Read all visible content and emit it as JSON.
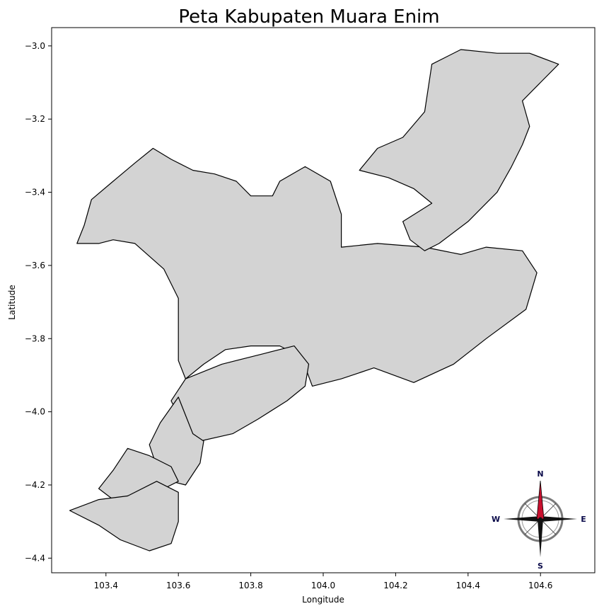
{
  "title": "Peta Kabupaten Muara Enim",
  "xlabel": "Longitude",
  "ylabel": "Latitude",
  "x_ticks": [
    "103.4",
    "103.6",
    "103.8",
    "104.0",
    "104.2",
    "104.4",
    "104.6"
  ],
  "y_ticks": [
    "−3.0",
    "−3.2",
    "−3.4",
    "−3.6",
    "−3.8",
    "−4.0",
    "−4.2",
    "−4.4"
  ],
  "compass": {
    "n": "N",
    "e": "E",
    "s": "S",
    "w": "W"
  },
  "colors": {
    "fill": "#d3d3d3",
    "stroke": "#000000",
    "needle": "#c8102e"
  },
  "chart_data": {
    "type": "map",
    "title": "Peta Kabupaten Muara Enim",
    "xlabel": "Longitude",
    "ylabel": "Latitude",
    "xlim": [
      103.25,
      104.75
    ],
    "ylim": [
      -4.44,
      -2.95
    ],
    "regions": [
      {
        "points": [
          [
            103.34,
            -3.49
          ],
          [
            103.36,
            -3.42
          ],
          [
            103.42,
            -3.37
          ],
          [
            103.48,
            -3.32
          ],
          [
            103.53,
            -3.28
          ],
          [
            103.58,
            -3.31
          ],
          [
            103.64,
            -3.34
          ],
          [
            103.7,
            -3.35
          ],
          [
            103.76,
            -3.37
          ],
          [
            103.8,
            -3.41
          ],
          [
            103.86,
            -3.41
          ],
          [
            103.88,
            -3.37
          ],
          [
            103.95,
            -3.33
          ],
          [
            104.02,
            -3.37
          ],
          [
            104.05,
            -3.46
          ],
          [
            104.05,
            -3.55
          ],
          [
            104.15,
            -3.54
          ],
          [
            104.28,
            -3.55
          ],
          [
            104.38,
            -3.57
          ],
          [
            104.45,
            -3.55
          ],
          [
            104.55,
            -3.56
          ],
          [
            104.59,
            -3.62
          ],
          [
            104.56,
            -3.72
          ],
          [
            104.45,
            -3.8
          ],
          [
            104.36,
            -3.87
          ],
          [
            104.25,
            -3.92
          ],
          [
            104.14,
            -3.88
          ],
          [
            104.05,
            -3.91
          ],
          [
            103.97,
            -3.93
          ],
          [
            103.94,
            -3.85
          ],
          [
            103.88,
            -3.82
          ],
          [
            103.8,
            -3.82
          ],
          [
            103.73,
            -3.83
          ],
          [
            103.67,
            -3.87
          ],
          [
            103.62,
            -3.91
          ],
          [
            103.6,
            -3.86
          ],
          [
            103.6,
            -3.8
          ],
          [
            103.6,
            -3.69
          ],
          [
            103.56,
            -3.61
          ],
          [
            103.48,
            -3.54
          ],
          [
            103.42,
            -3.53
          ],
          [
            103.38,
            -3.54
          ],
          [
            103.32,
            -3.54
          ]
        ]
      },
      {
        "points": [
          [
            104.3,
            -3.05
          ],
          [
            104.38,
            -3.01
          ],
          [
            104.48,
            -3.02
          ],
          [
            104.57,
            -3.02
          ],
          [
            104.65,
            -3.05
          ],
          [
            104.6,
            -3.1
          ],
          [
            104.55,
            -3.15
          ],
          [
            104.57,
            -3.22
          ],
          [
            104.55,
            -3.27
          ],
          [
            104.52,
            -3.33
          ],
          [
            104.48,
            -3.4
          ],
          [
            104.4,
            -3.48
          ],
          [
            104.32,
            -3.54
          ],
          [
            104.28,
            -3.56
          ],
          [
            104.24,
            -3.53
          ],
          [
            104.22,
            -3.48
          ],
          [
            104.3,
            -3.43
          ],
          [
            104.25,
            -3.39
          ],
          [
            104.18,
            -3.36
          ],
          [
            104.1,
            -3.34
          ],
          [
            104.15,
            -3.28
          ],
          [
            104.22,
            -3.25
          ],
          [
            104.28,
            -3.18
          ]
        ]
      },
      {
        "points": [
          [
            103.58,
            -3.97
          ],
          [
            103.62,
            -3.91
          ],
          [
            103.72,
            -3.87
          ],
          [
            103.84,
            -3.84
          ],
          [
            103.92,
            -3.82
          ],
          [
            103.96,
            -3.87
          ],
          [
            103.95,
            -3.93
          ],
          [
            103.9,
            -3.97
          ],
          [
            103.82,
            -4.02
          ],
          [
            103.75,
            -4.06
          ],
          [
            103.66,
            -4.08
          ],
          [
            103.61,
            -4.03
          ]
        ]
      },
      {
        "points": [
          [
            103.52,
            -4.09
          ],
          [
            103.55,
            -4.03
          ],
          [
            103.6,
            -3.96
          ],
          [
            103.64,
            -4.06
          ],
          [
            103.67,
            -4.08
          ],
          [
            103.66,
            -4.14
          ],
          [
            103.62,
            -4.2
          ],
          [
            103.58,
            -4.19
          ],
          [
            103.54,
            -4.15
          ]
        ]
      },
      {
        "points": [
          [
            103.38,
            -4.21
          ],
          [
            103.42,
            -4.16
          ],
          [
            103.46,
            -4.1
          ],
          [
            103.52,
            -4.12
          ],
          [
            103.58,
            -4.15
          ],
          [
            103.6,
            -4.19
          ],
          [
            103.56,
            -4.21
          ],
          [
            103.5,
            -4.22
          ],
          [
            103.42,
            -4.24
          ]
        ]
      },
      {
        "points": [
          [
            103.3,
            -4.27
          ],
          [
            103.38,
            -4.24
          ],
          [
            103.46,
            -4.23
          ],
          [
            103.54,
            -4.19
          ],
          [
            103.6,
            -4.22
          ],
          [
            103.6,
            -4.3
          ],
          [
            103.58,
            -4.36
          ],
          [
            103.52,
            -4.38
          ],
          [
            103.44,
            -4.35
          ],
          [
            103.38,
            -4.31
          ]
        ]
      }
    ]
  }
}
